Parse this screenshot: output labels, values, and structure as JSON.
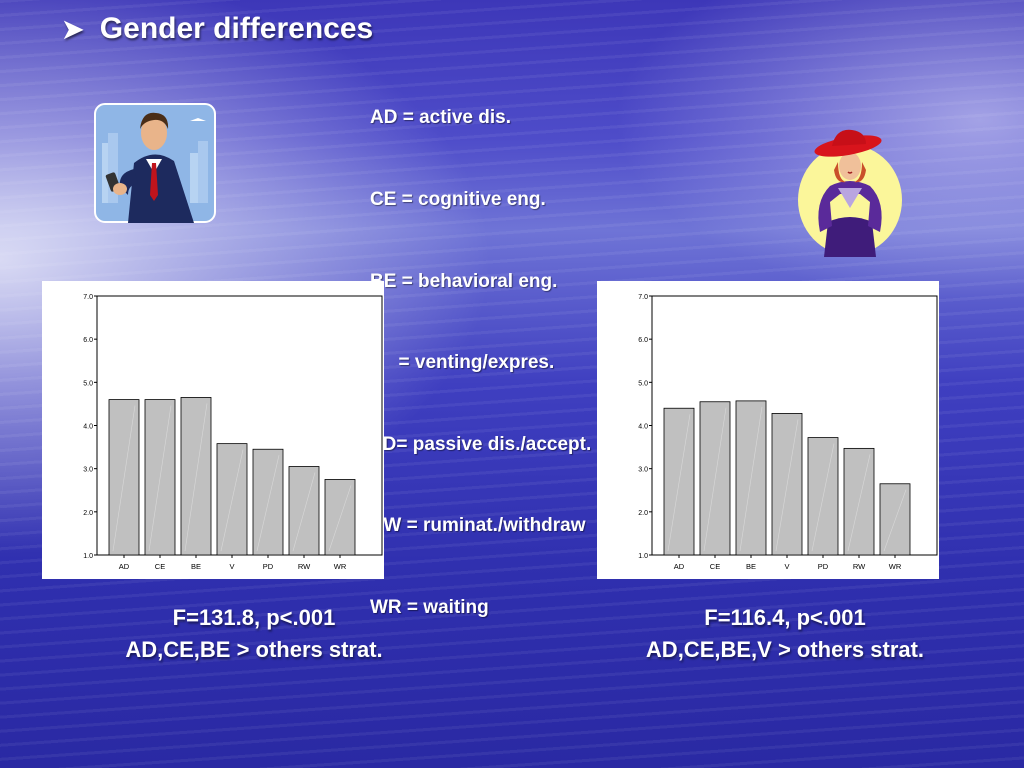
{
  "slide": {
    "title": "Gender differences",
    "legend_lines": [
      "AD = active dis.",
      "CE = cognitive eng.",
      "BE = behavioral eng.",
      "V   = venting/expres.",
      "PD= passive dis./accept.",
      "RW = ruminat./withdraw",
      "WR = waiting"
    ],
    "left_stat": {
      "line1": "F=131.8, p<.001",
      "line2": "AD,CE,BE > others strat."
    },
    "right_stat": {
      "line1": "F=116.4, p<.001",
      "line2": "AD,CE,BE,V > others strat."
    },
    "icons": {
      "male": "businessman-icon",
      "female": "woman-red-hat-icon"
    }
  },
  "chart_data": [
    {
      "type": "bar",
      "categories": [
        "AD",
        "CE",
        "BE",
        "V",
        "PD",
        "RW",
        "WR"
      ],
      "values": [
        4.6,
        4.6,
        4.65,
        3.58,
        3.45,
        3.05,
        2.75
      ],
      "ylim": [
        1.0,
        7.0
      ],
      "yticks": [
        "1.0",
        "2.0",
        "3.0",
        "4.0",
        "5.0",
        "6.0",
        "7.0"
      ],
      "bar_color": "#c0c0c0",
      "grid": false
    },
    {
      "type": "bar",
      "categories": [
        "AD",
        "CE",
        "BE",
        "V",
        "PD",
        "RW",
        "WR"
      ],
      "values": [
        4.4,
        4.55,
        4.57,
        4.28,
        3.72,
        3.47,
        2.65
      ],
      "ylim": [
        1.0,
        7.0
      ],
      "yticks": [
        "1.0",
        "2.0",
        "3.0",
        "4.0",
        "5.0",
        "6.0",
        "7.0"
      ],
      "bar_color": "#c0c0c0",
      "grid": false
    }
  ]
}
